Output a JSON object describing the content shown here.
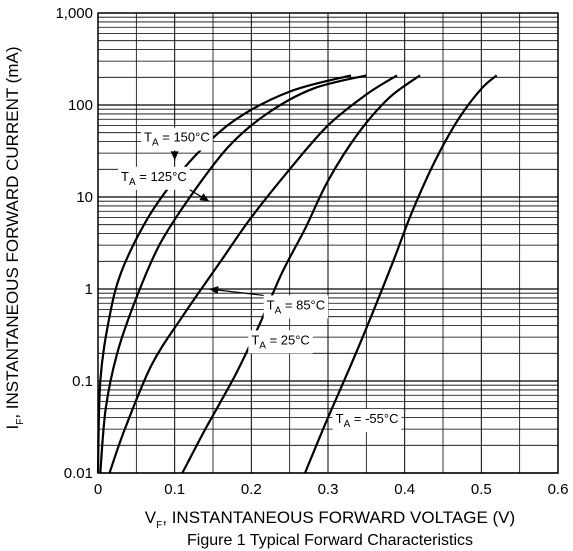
{
  "chart_data": {
    "type": "line",
    "title": "",
    "caption": "Figure 1 Typical Forward Characteristics",
    "xlabel": {
      "main": "V",
      "sub": "F",
      "rest": ", INSTANTANEOUS FORWARD VOLTAGE (V)"
    },
    "ylabel": {
      "main": "I",
      "sub": "F",
      "rest": ", INSTANTANEOUS FORWARD CURRENT (mA)"
    },
    "xlim": [
      0,
      0.6
    ],
    "ylim": [
      0.01,
      1000
    ],
    "yscale": "log",
    "grid": true,
    "x_ticks": [
      {
        "value": 0,
        "label": "0"
      },
      {
        "value": 0.1,
        "label": "0.1"
      },
      {
        "value": 0.2,
        "label": "0.2"
      },
      {
        "value": 0.3,
        "label": "0.3"
      },
      {
        "value": 0.4,
        "label": "0.4"
      },
      {
        "value": 0.5,
        "label": "0.5"
      },
      {
        "value": 0.6,
        "label": "0.6"
      }
    ],
    "y_ticks": [
      {
        "value": 0.01,
        "label": "0.01"
      },
      {
        "value": 0.1,
        "label": "0.1"
      },
      {
        "value": 1,
        "label": "1"
      },
      {
        "value": 10,
        "label": "10"
      },
      {
        "value": 100,
        "label": "100"
      },
      {
        "value": 1000,
        "label": "1,000"
      }
    ],
    "series": [
      {
        "name": "T_A = 150°C",
        "label_main": "T",
        "label_sub": "A",
        "label_rest": " = 150°C",
        "points": [
          [
            0.0,
            0.01
          ],
          [
            0.003,
            0.1
          ],
          [
            0.015,
            0.5
          ],
          [
            0.03,
            1.5
          ],
          [
            0.06,
            5
          ],
          [
            0.09,
            12
          ],
          [
            0.13,
            30
          ],
          [
            0.18,
            70
          ],
          [
            0.25,
            140
          ],
          [
            0.33,
            210
          ]
        ]
      },
      {
        "name": "T_A = 125°C",
        "label_main": "T",
        "label_sub": "A",
        "label_rest": " = 125°C",
        "points": [
          [
            0.003,
            0.01
          ],
          [
            0.01,
            0.05
          ],
          [
            0.025,
            0.2
          ],
          [
            0.05,
            0.8
          ],
          [
            0.08,
            3
          ],
          [
            0.12,
            10
          ],
          [
            0.17,
            35
          ],
          [
            0.22,
            80
          ],
          [
            0.28,
            150
          ],
          [
            0.35,
            210
          ]
        ]
      },
      {
        "name": "T_A = 85°C",
        "label_main": "T",
        "label_sub": "A",
        "label_rest": " = 85°C",
        "points": [
          [
            0.015,
            0.01
          ],
          [
            0.035,
            0.03
          ],
          [
            0.07,
            0.15
          ],
          [
            0.11,
            0.5
          ],
          [
            0.16,
            2
          ],
          [
            0.2,
            6
          ],
          [
            0.25,
            20
          ],
          [
            0.3,
            60
          ],
          [
            0.35,
            130
          ],
          [
            0.39,
            210
          ]
        ]
      },
      {
        "name": "T_A = 25°C",
        "label_main": "T",
        "label_sub": "A",
        "label_rest": " = 25°C",
        "points": [
          [
            0.11,
            0.01
          ],
          [
            0.14,
            0.03
          ],
          [
            0.18,
            0.12
          ],
          [
            0.21,
            0.4
          ],
          [
            0.24,
            1.5
          ],
          [
            0.27,
            4.5
          ],
          [
            0.3,
            15
          ],
          [
            0.34,
            50
          ],
          [
            0.38,
            120
          ],
          [
            0.42,
            210
          ]
        ]
      },
      {
        "name": "T_A = -55°C",
        "label_main": "T",
        "label_sub": "A",
        "label_rest": " = -55°C",
        "points": [
          [
            0.27,
            0.01
          ],
          [
            0.3,
            0.04
          ],
          [
            0.33,
            0.15
          ],
          [
            0.36,
            0.6
          ],
          [
            0.385,
            2
          ],
          [
            0.41,
            7
          ],
          [
            0.44,
            25
          ],
          [
            0.47,
            70
          ],
          [
            0.5,
            150
          ],
          [
            0.52,
            210
          ]
        ]
      }
    ],
    "annotations": [
      {
        "series": 0,
        "text_x": 0.06,
        "text_y": 40,
        "arrow_to_x": 0.1,
        "arrow_to_y": 25
      },
      {
        "series": 1,
        "text_x": 0.03,
        "text_y": 15,
        "arrow_to_x": 0.145,
        "arrow_to_y": 9
      },
      {
        "series": 2,
        "text_x": 0.22,
        "text_y": 0.6,
        "arrow_to_x": 0.145,
        "arrow_to_y": 1.0
      },
      {
        "series": 3,
        "text_x": 0.2,
        "text_y": 0.25,
        "arrow_to_x": 0.2,
        "arrow_to_y": 0.25
      },
      {
        "series": 4,
        "text_x": 0.31,
        "text_y": 0.035,
        "arrow_to_x": 0.31,
        "arrow_to_y": 0.035
      }
    ]
  }
}
